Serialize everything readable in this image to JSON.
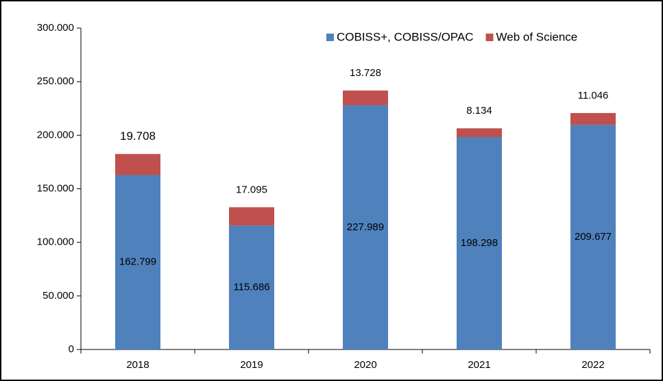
{
  "chart_data": {
    "type": "stacked_bar",
    "categories": [
      "2018",
      "2019",
      "2020",
      "2021",
      "2022"
    ],
    "series": [
      {
        "name": "COBISS+, COBISS/OPAC",
        "color": "#4f81bd",
        "values": [
          162799,
          115686,
          227989,
          198298,
          209677
        ],
        "value_labels": [
          "162.799",
          "115.686",
          "227.989",
          "198.298",
          "209.677"
        ]
      },
      {
        "name": "Web of Science",
        "color": "#c0504d",
        "values": [
          19708,
          17095,
          13728,
          8134,
          11046
        ],
        "value_labels": [
          "19.708",
          "17.095",
          "13.728",
          "8.134",
          "11.046"
        ]
      }
    ],
    "ylim": [
      0,
      300000
    ],
    "yticks": [
      0,
      {
        "value": 50000,
        "label": "50.000"
      },
      {
        "value": 100000,
        "label": "100.000"
      },
      {
        "value": 150000,
        "label": "150.000"
      },
      {
        "value": 200000,
        "label": "200.000"
      },
      {
        "value": 250000,
        "label": "250.000"
      },
      {
        "value": 300000,
        "label": "300.000"
      }
    ],
    "legend": "top-right",
    "grid": false
  }
}
